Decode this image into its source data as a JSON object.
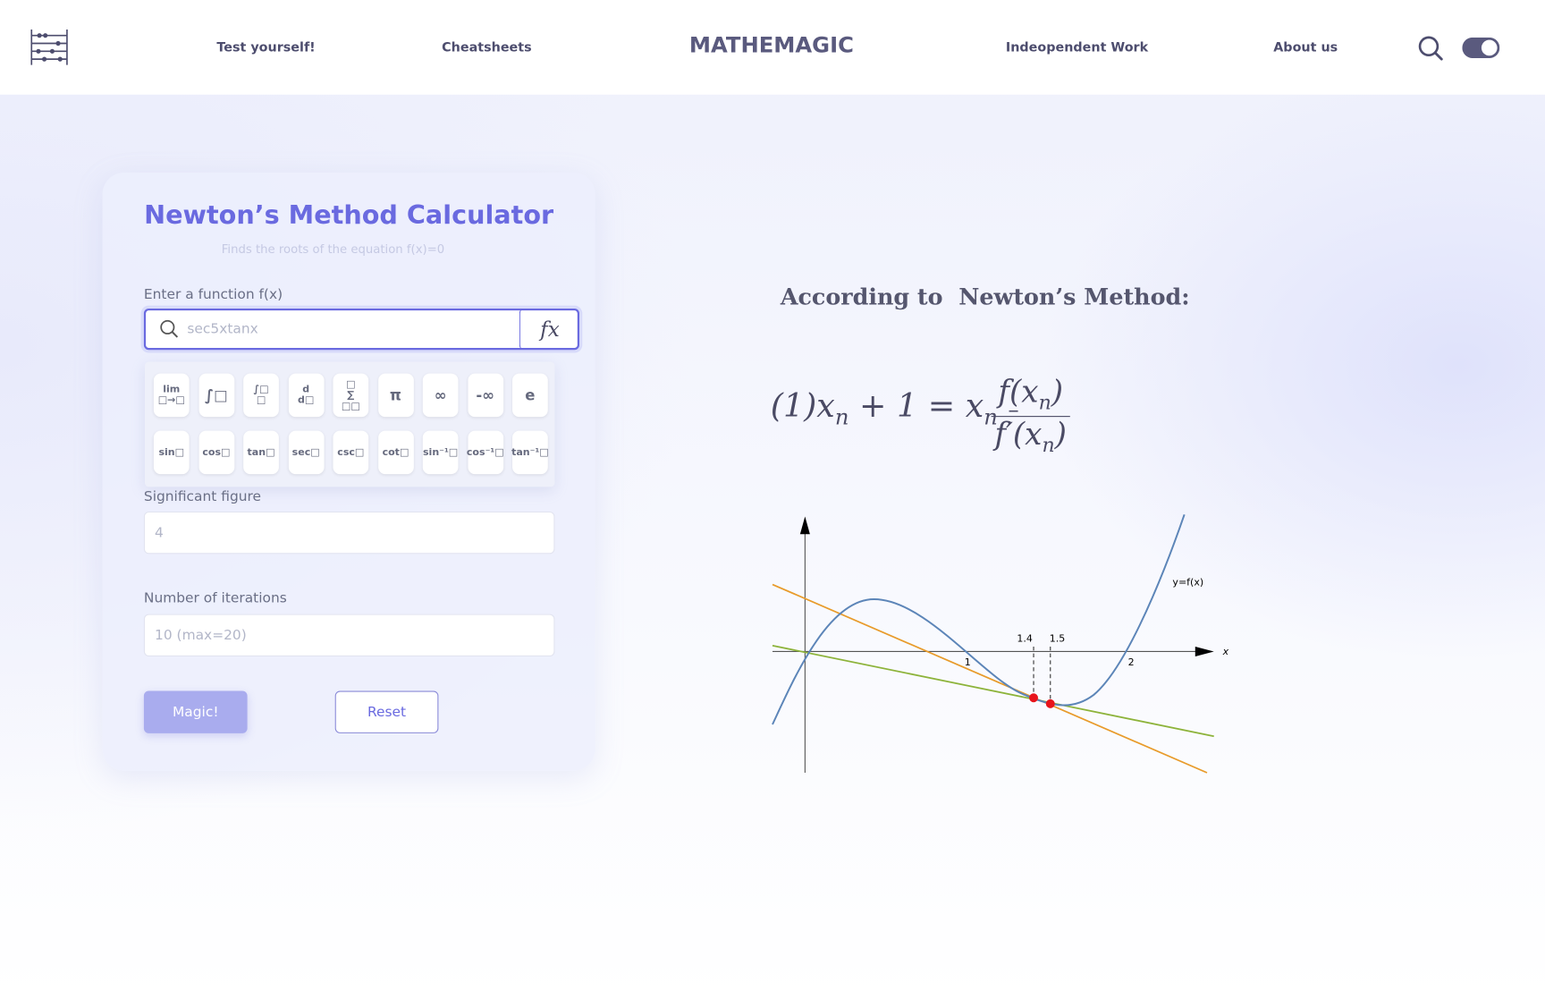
{
  "nav": {
    "links": [
      "Test yourself!",
      "Cheatsheets",
      "Indeopendent Work",
      "About us"
    ],
    "brand": "MATHEMAGIC"
  },
  "calculator": {
    "title": "Newton’s Method Calculator",
    "subtitle": "Finds the roots of the equation f(x)=0",
    "function_label": "Enter a function f(x)",
    "function_placeholder": "sec5xtanx",
    "fx_button": "fx",
    "keypad": {
      "row1": [
        [
          "lim",
          "□→□"
        ],
        [
          "∫□"
        ],
        [
          "∫□",
          "□"
        ],
        [
          "d",
          "d□"
        ],
        [
          "□",
          "∑",
          "□□"
        ],
        [
          "π"
        ],
        [
          "∞"
        ],
        [
          "-∞"
        ],
        [
          "e"
        ]
      ],
      "row2": [
        [
          "sin□"
        ],
        [
          "cos□"
        ],
        [
          "tan□"
        ],
        [
          "sec□"
        ],
        [
          "csc□"
        ],
        [
          "cot□"
        ],
        [
          "sin⁻¹□"
        ],
        [
          "cos⁻¹□"
        ],
        [
          "tan⁻¹□"
        ]
      ]
    },
    "sigfig_label": "Significant figure",
    "sigfig_placeholder": "4",
    "iterations_label": "Number of iterations",
    "iterations_placeholder": "10 (max=20)",
    "magic_button": "Magic!",
    "reset_button": "Reset"
  },
  "explanation": {
    "heading": "According to  Newton’s Method:",
    "formula": {
      "lhs_1": "(1)x",
      "sub_1": "n",
      "lhs_2": "+ 1 = x",
      "sub_2": "n",
      "minus": "–",
      "num": "f(x",
      "num_sub": "n",
      "num_close": ")",
      "den": "f′(x",
      "den_sub": "n",
      "den_close": ")"
    },
    "graph_labels": {
      "curve": "y=f(x)",
      "x1": "1.4",
      "x2": "1.5",
      "tick1": "1",
      "tick2": "2",
      "axis": "x"
    }
  }
}
